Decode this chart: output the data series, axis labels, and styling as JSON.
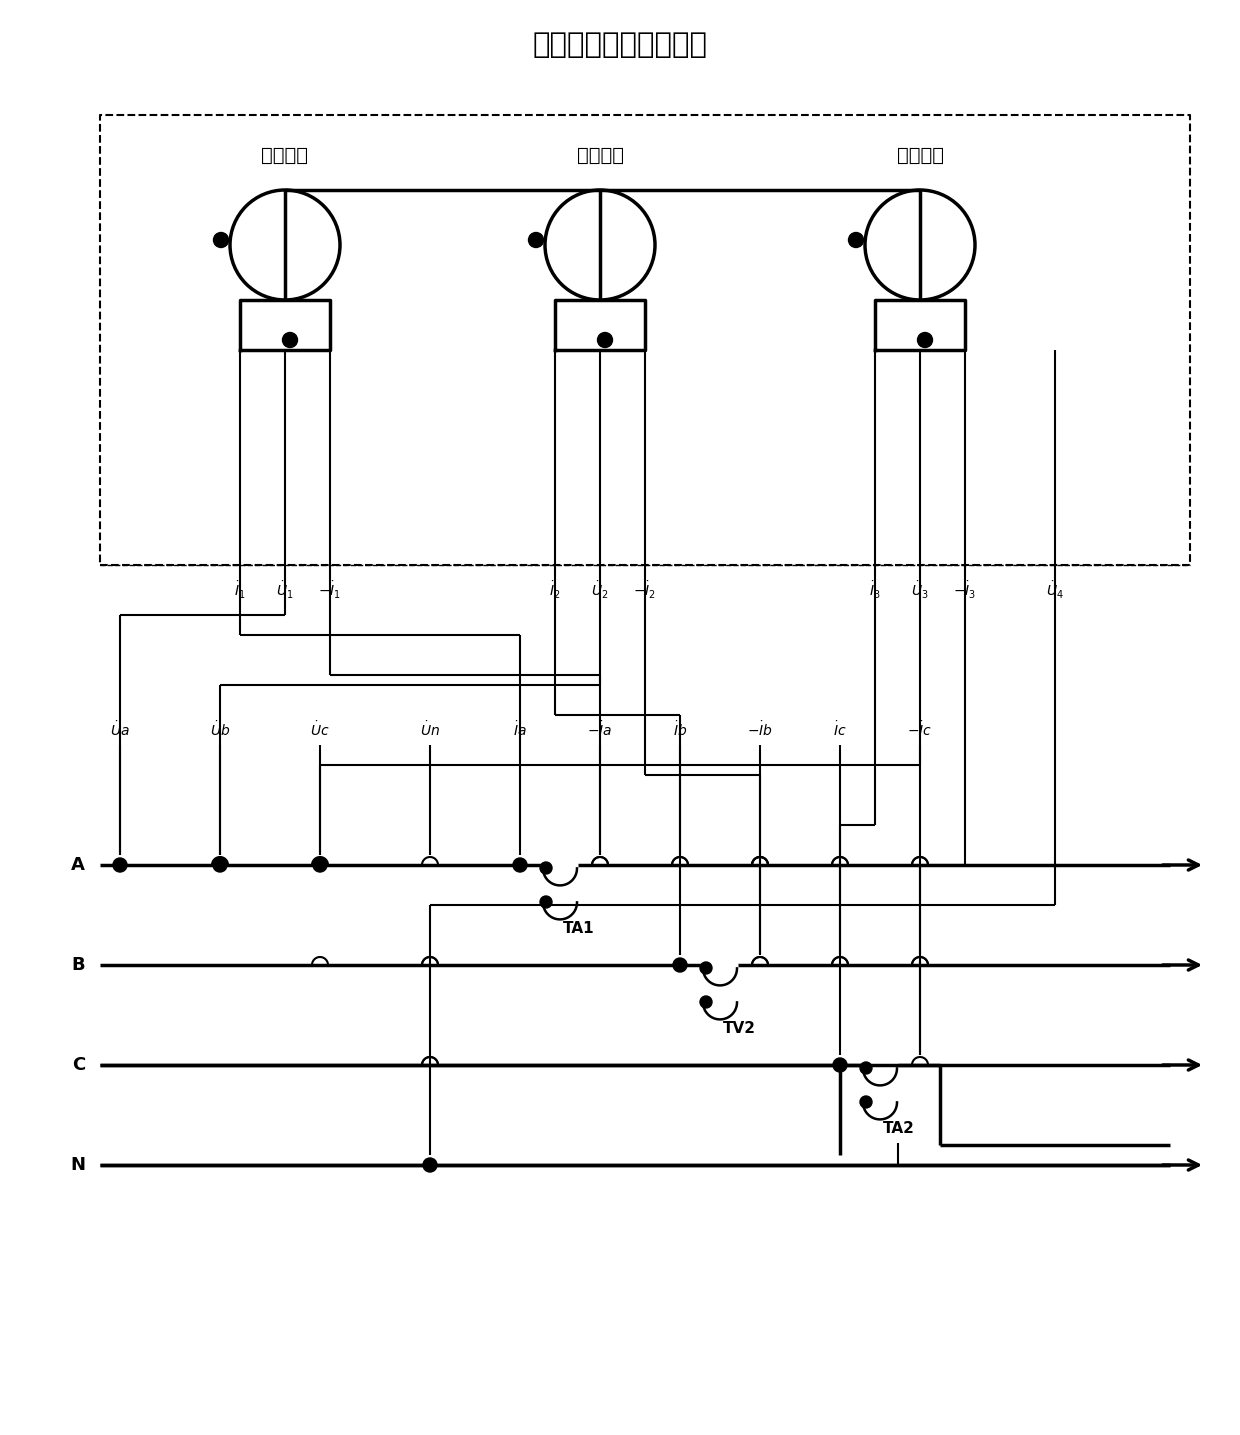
{
  "title": "三相四线基本计量单元",
  "box_labels": [
    "第一元件",
    "第二元件",
    "第三元件"
  ],
  "bus_labels": [
    "A",
    "B",
    "C",
    "N"
  ],
  "transformer_labels": [
    "TA1",
    "TV2",
    "TA2"
  ],
  "bg": "#ffffff"
}
